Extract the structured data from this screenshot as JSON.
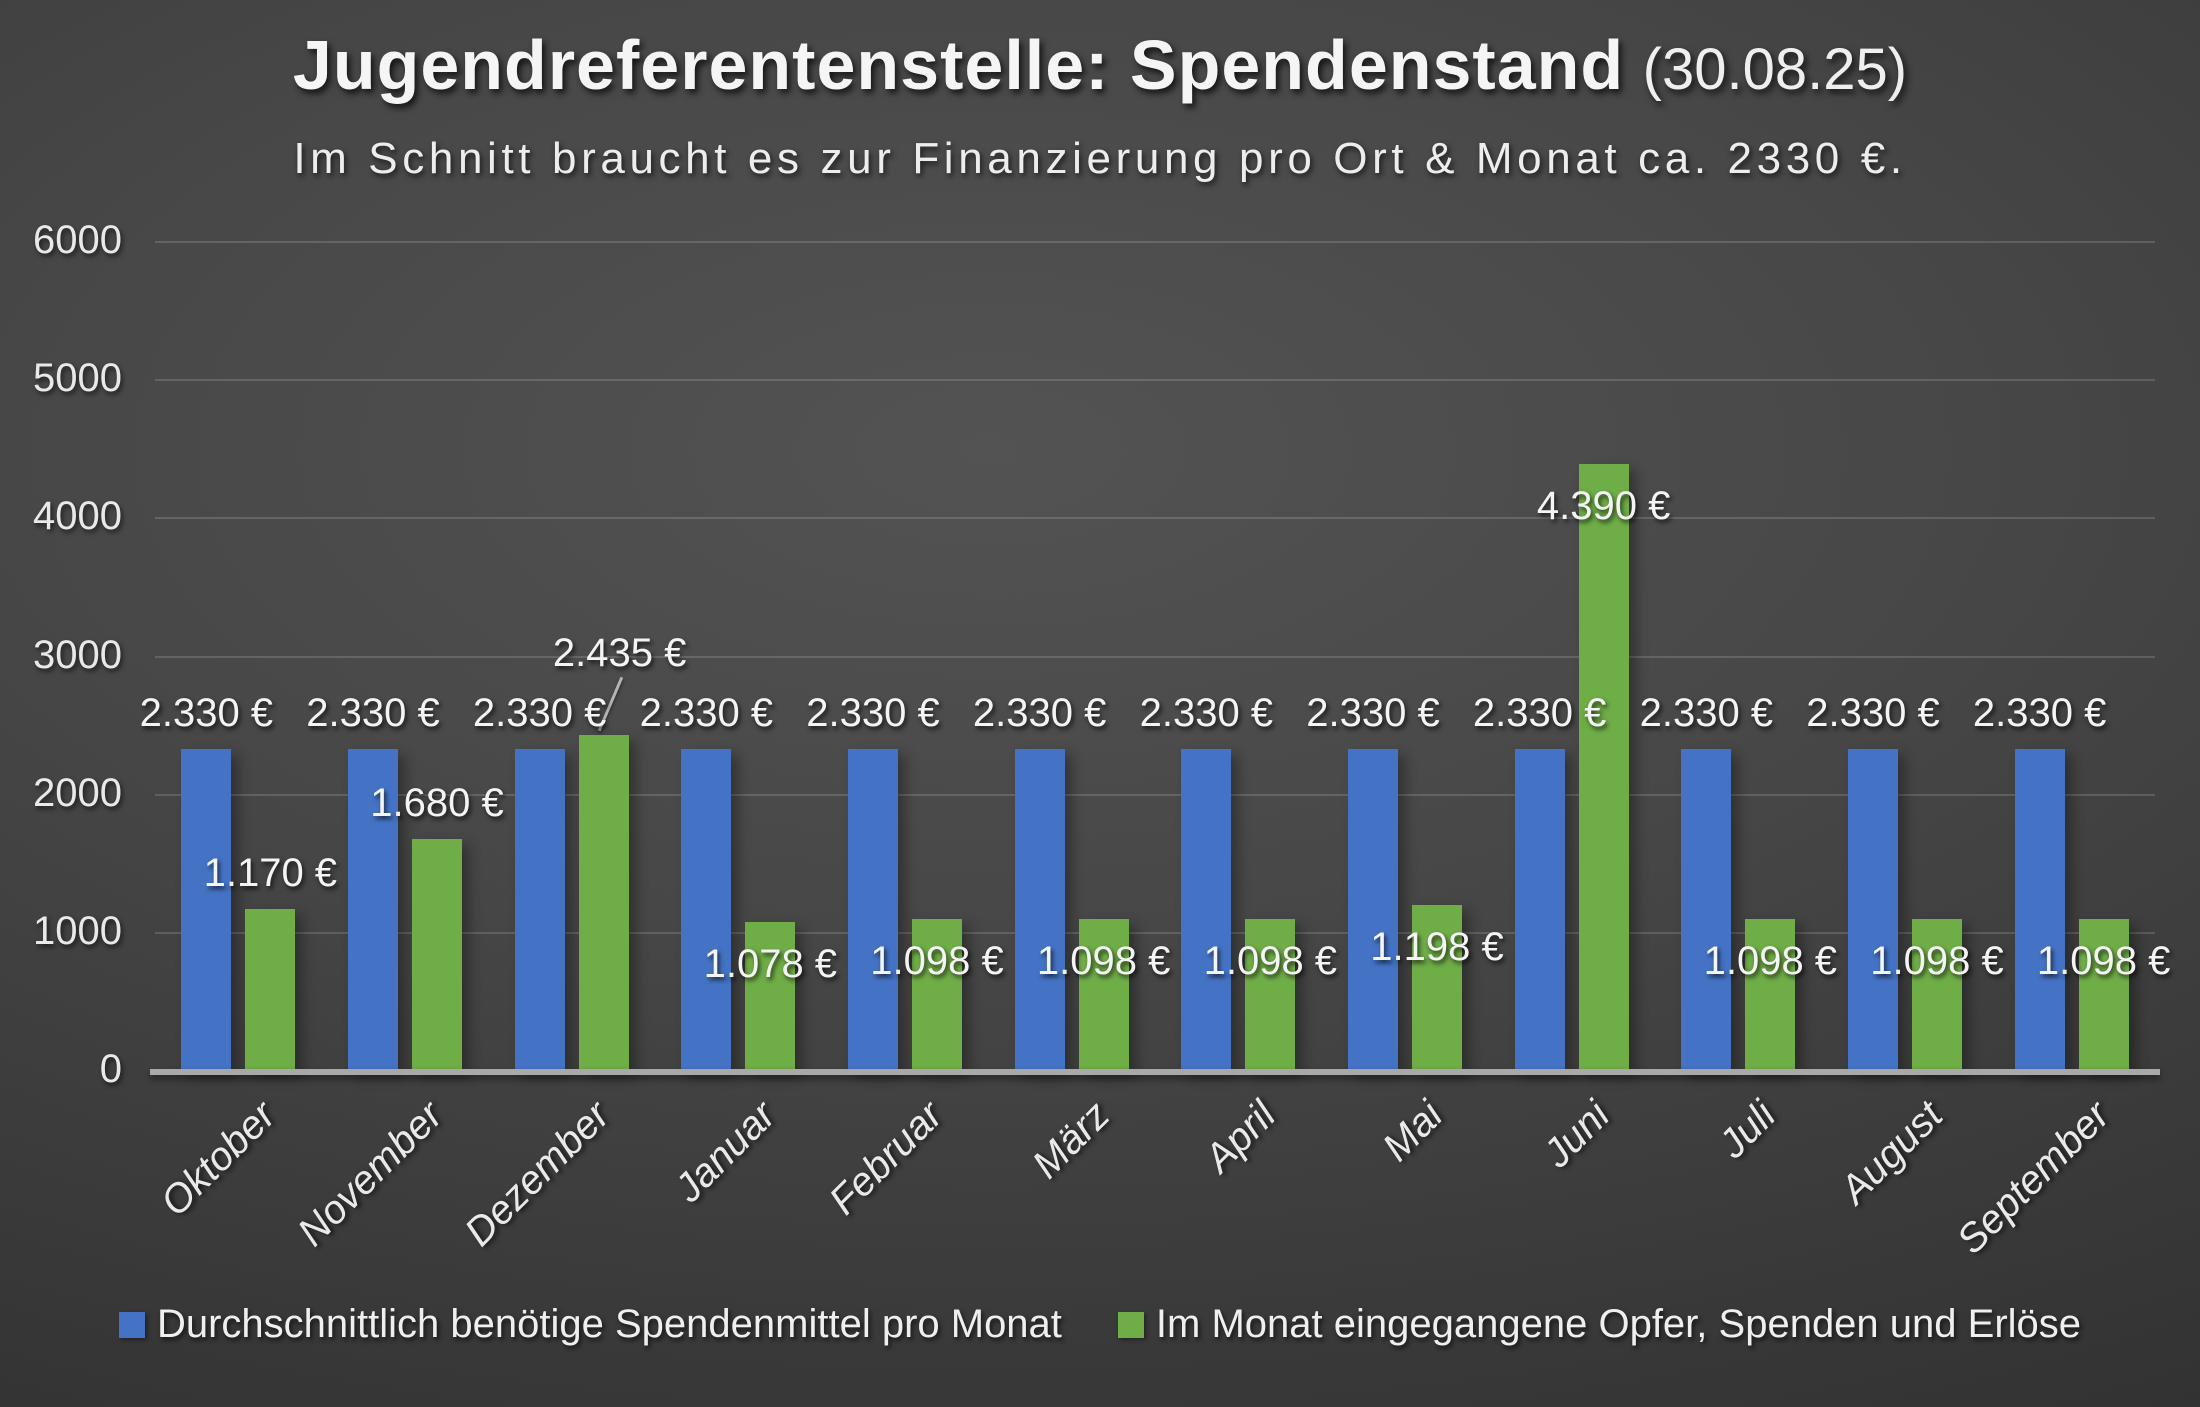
{
  "slide": {
    "title": "Jugendreferentenstelle: Spendenstand",
    "title_suffix": "(30.08.25)",
    "subtitle": "Im Schnitt braucht es zur Finanzierung pro Ort & Monat ca. 2330 €."
  },
  "chart_data": {
    "type": "bar",
    "title": "Jugendreferentenstelle: Spendenstand (30.08.25)",
    "subtitle": "Im Schnitt braucht es zur Finanzierung pro Ort & Monat ca. 2330 €.",
    "categories": [
      "Oktober",
      "November",
      "Dezember",
      "Januar",
      "Februar",
      "März",
      "April",
      "Mai",
      "Juni",
      "Juli",
      "August",
      "September"
    ],
    "series": [
      {
        "name": "Durchschnittlich benötige Spendenmittel pro Monat",
        "color": "#4473C5",
        "values": [
          2330,
          2330,
          2330,
          2330,
          2330,
          2330,
          2330,
          2330,
          2330,
          2330,
          2330,
          2330
        ],
        "labels": [
          "2.330 €",
          "2.330 €",
          "2.330 €",
          "2.330 €",
          "2.330 €",
          "2.330 €",
          "2.330 €",
          "2.330 €",
          "2.330 €",
          "2.330 €",
          "2.330 €",
          "2.330 €"
        ],
        "label_placement": [
          "above",
          "above",
          "above",
          "above",
          "above",
          "above",
          "above",
          "above",
          "above",
          "above",
          "above",
          "above"
        ]
      },
      {
        "name": "Im Monat eingegangene Opfer, Spenden und Erlöse",
        "color": "#6FAD47",
        "values": [
          1170,
          1680,
          2435,
          1078,
          1098,
          1098,
          1098,
          1198,
          4390,
          1098,
          1098,
          1098
        ],
        "labels": [
          "1.170 €",
          "1.680 €",
          "2.435 €",
          "1.078 €",
          "1.098 €",
          "1.098 €",
          "1.098 €",
          "1.198 €",
          "4.390 €",
          "1.098 €",
          "1.098 €",
          "1.098 €"
        ],
        "label_placement": [
          "above",
          "above",
          "callout",
          "inside",
          "inside",
          "inside",
          "inside",
          "inside",
          "inside",
          "inside",
          "inside",
          "inside"
        ]
      }
    ],
    "ylim": [
      0,
      6000
    ],
    "yticks": [
      0,
      1000,
      2000,
      3000,
      4000,
      5000,
      6000
    ],
    "ytick_labels": [
      "0",
      "1000",
      "2000",
      "3000",
      "4000",
      "5000",
      "6000"
    ],
    "grid": true,
    "legend_position": "bottom"
  }
}
